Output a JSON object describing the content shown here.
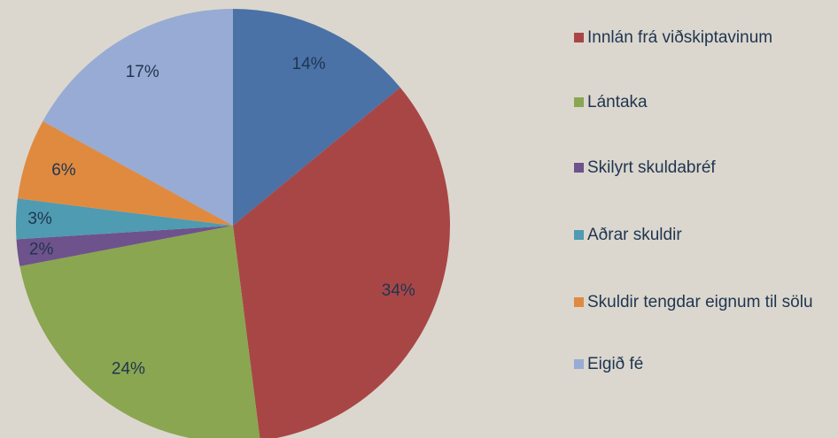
{
  "chart_data": {
    "type": "pie",
    "categories": [
      null,
      "Innlán frá viðskiptavinum",
      "Lántaka",
      "Skilyrt skuldabréf",
      "Aðrar skuldir",
      "Skuldir tengdar eignum til sölu",
      "Eigið fé"
    ],
    "values": [
      14,
      34,
      24,
      2,
      3,
      6,
      17
    ],
    "value_labels": [
      "14%",
      "34%",
      "24%",
      "2%",
      "3%",
      "6%",
      "17%"
    ],
    "colors": [
      "#4a72a6",
      "#a84646",
      "#8aa650",
      "#6e528c",
      "#4f9bb1",
      "#e08a40",
      "#97abd4"
    ]
  }
}
